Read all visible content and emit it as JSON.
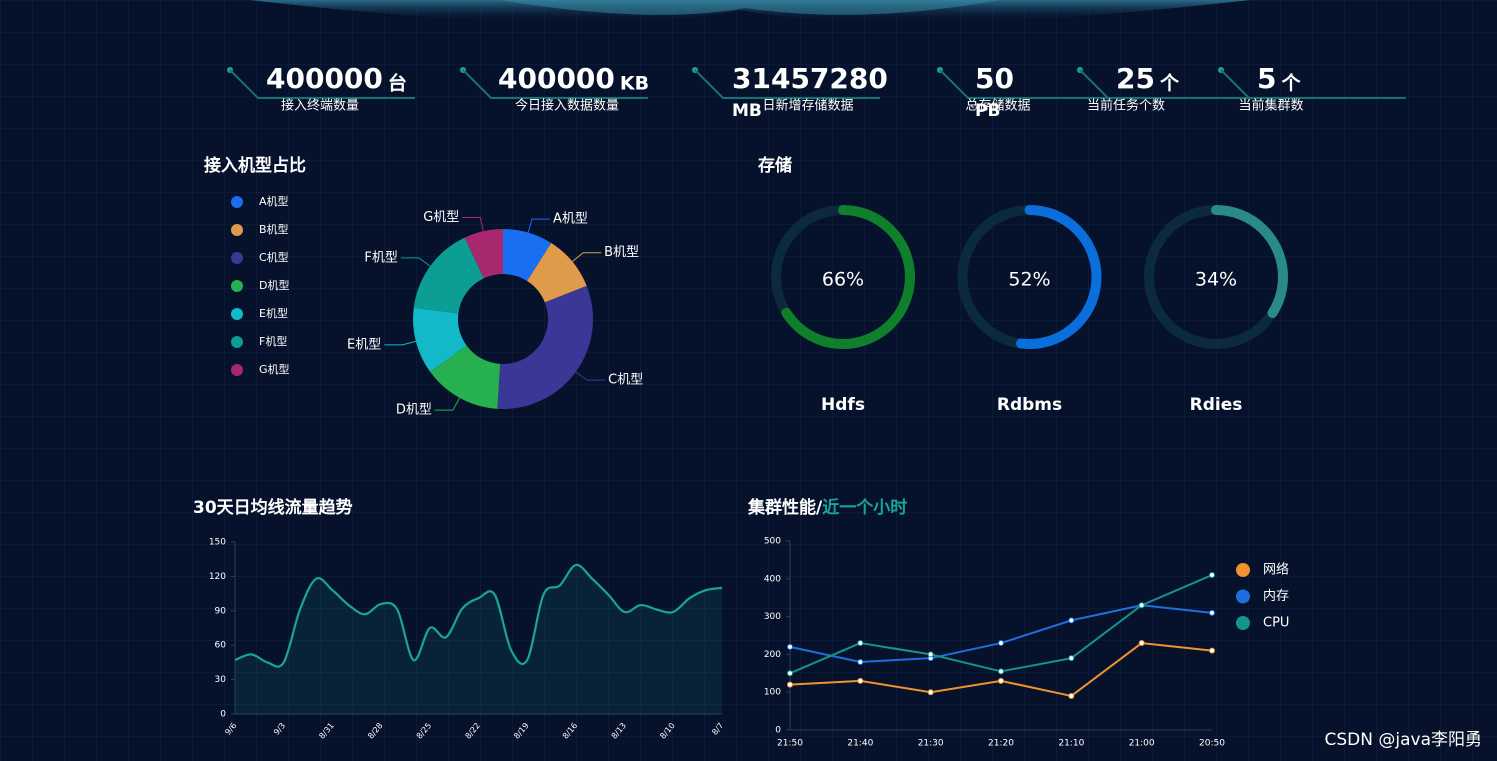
{
  "stats": [
    {
      "value": 400000,
      "unit": "台",
      "label": "接入终端数量"
    },
    {
      "value": 400000,
      "unit": "KB",
      "label": "今日接入数据数量"
    },
    {
      "value": 31457280,
      "unit": "MB",
      "label": "日新增存储数据"
    },
    {
      "value": 50,
      "unit": "PB",
      "label": "总存储数据"
    },
    {
      "value": 25,
      "unit": "个",
      "label": "当前任务个数"
    },
    {
      "value": 5,
      "unit": "个",
      "label": "当前集群数"
    }
  ],
  "chart_data": [
    {
      "type": "pie",
      "title": "接入机型占比",
      "categories": [
        "A机型",
        "B机型",
        "C机型",
        "D机型",
        "E机型",
        "F机型",
        "G机型"
      ],
      "values": [
        9,
        10,
        32,
        14,
        12,
        16,
        7
      ],
      "colors": [
        "#1a6ef0",
        "#e09b4a",
        "#3b3797",
        "#27b04f",
        "#13b9c9",
        "#0c9d95",
        "#a7286d"
      ]
    },
    {
      "type": "gauge",
      "title": "存储",
      "categories": [
        "Hdfs",
        "Rdbms",
        "Rdies"
      ],
      "values": [
        66,
        52,
        34
      ],
      "value_labels": [
        "66%",
        "52%",
        "34%"
      ],
      "colors": [
        "#0f7f2b",
        "#0a6fdc",
        "#2a8a85"
      ],
      "ylim": [
        0,
        100
      ]
    },
    {
      "type": "area",
      "title": "30天日均线流量趋势",
      "categories": [
        "9/6",
        null,
        null,
        "9/3",
        null,
        null,
        "8/31",
        null,
        null,
        "8/28",
        null,
        null,
        "8/25",
        null,
        null,
        "8/22",
        null,
        null,
        "8/19",
        null,
        null,
        "8/16",
        null,
        null,
        "8/13",
        null,
        null,
        "8/10",
        null,
        null,
        "8/7"
      ],
      "values": [
        47,
        52,
        45,
        45,
        91,
        118,
        108,
        95,
        87,
        96,
        91,
        47,
        75,
        67,
        92,
        101,
        104,
        56,
        47,
        104,
        112,
        130,
        118,
        104,
        89,
        95,
        91,
        89,
        101,
        108,
        110
      ],
      "color": "#1aa39a",
      "ylim": [
        0,
        150
      ],
      "yticks": [
        0,
        30,
        60,
        90,
        120,
        150
      ]
    },
    {
      "type": "line",
      "title": "集群性能/",
      "subtitle": "近一个小时",
      "categories": [
        "21:50",
        "21:40",
        "21:30",
        "21:20",
        "21:10",
        "21:00",
        "20:50"
      ],
      "series": [
        {
          "name": "网络",
          "color": "#f0922e",
          "values": [
            120,
            130,
            100,
            130,
            90,
            230,
            210
          ]
        },
        {
          "name": "内存",
          "color": "#1e6fdd",
          "values": [
            220,
            180,
            190,
            230,
            290,
            330,
            310
          ]
        },
        {
          "name": "CPU",
          "color": "#13958d",
          "values": [
            150,
            230,
            200,
            155,
            190,
            330,
            410
          ]
        }
      ],
      "ylim": [
        0,
        500
      ],
      "yticks": [
        0,
        100,
        200,
        300,
        400,
        500
      ],
      "legend": "right"
    }
  ],
  "watermark": "CSDN @java李阳勇"
}
